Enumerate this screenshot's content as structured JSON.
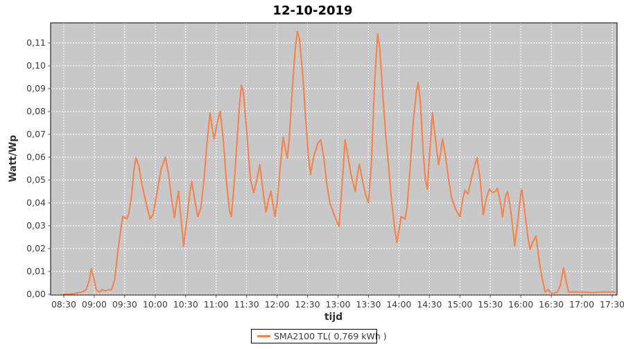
{
  "page": {
    "background": "#FFFFFF"
  },
  "chart_data": {
    "type": "line",
    "title": "12-10-2019",
    "xlabel": "tijd",
    "ylabel": "Watt/Wp",
    "x_tick_labels": [
      "08:30",
      "09:00",
      "09:30",
      "10:00",
      "10:30",
      "11:00",
      "11:30",
      "12:00",
      "12:30",
      "13:00",
      "13:30",
      "14:00",
      "14:30",
      "15:00",
      "15:30",
      "16:00",
      "16:30",
      "17:00",
      "17:30"
    ],
    "y_tick_labels": [
      "0,00",
      "0,01",
      "0,02",
      "0,03",
      "0,04",
      "0,05",
      "0,06",
      "0,07",
      "0,08",
      "0,09",
      "0,10",
      "0,11"
    ],
    "y_tick_values": [
      0.0,
      0.01,
      0.02,
      0.03,
      0.04,
      0.05,
      0.06,
      0.07,
      0.08,
      0.09,
      0.1,
      0.11
    ],
    "ylim": [
      0,
      0.118
    ],
    "x_range": [
      "08:30",
      "17:30"
    ],
    "grid": true,
    "grid_style": "white-dashed",
    "legend_position": "bottom",
    "plot_background": "#C8C8C8",
    "grid_color": "#FFFFFF",
    "border_color": "#000000",
    "tick_color": "#666666",
    "series": [
      {
        "name": "SMA2100 TL( 0,769 kWh )",
        "color": "#F4854E",
        "points": [
          [
            "08:30",
            0.0
          ],
          [
            "08:36",
            0.0
          ],
          [
            "08:42",
            0.0005
          ],
          [
            "08:48",
            0.001
          ],
          [
            "08:52",
            0.002
          ],
          [
            "08:55",
            0.006
          ],
          [
            "08:57",
            0.0112
          ],
          [
            "08:59",
            0.008
          ],
          [
            "09:02",
            0.002
          ],
          [
            "09:05",
            0.001
          ],
          [
            "09:08",
            0.002
          ],
          [
            "09:11",
            0.0015
          ],
          [
            "09:14",
            0.002
          ],
          [
            "09:17",
            0.002
          ],
          [
            "09:20",
            0.006
          ],
          [
            "09:23",
            0.018
          ],
          [
            "09:26",
            0.028
          ],
          [
            "09:28",
            0.034
          ],
          [
            "09:30",
            0.0335
          ],
          [
            "09:32",
            0.033
          ],
          [
            "09:34",
            0.035
          ],
          [
            "09:37",
            0.044
          ],
          [
            "09:39",
            0.054
          ],
          [
            "09:41",
            0.0597
          ],
          [
            "09:44",
            0.056
          ],
          [
            "09:47",
            0.048
          ],
          [
            "09:51",
            0.04
          ],
          [
            "09:55",
            0.033
          ],
          [
            "09:58",
            0.035
          ],
          [
            "10:02",
            0.045
          ],
          [
            "10:06",
            0.055
          ],
          [
            "10:10",
            0.06
          ],
          [
            "10:13",
            0.053
          ],
          [
            "10:16",
            0.042
          ],
          [
            "10:19",
            0.0336
          ],
          [
            "10:21",
            0.04
          ],
          [
            "10:23",
            0.0452
          ],
          [
            "10:25",
            0.035
          ],
          [
            "10:28",
            0.021
          ],
          [
            "10:31",
            0.032
          ],
          [
            "10:34",
            0.044
          ],
          [
            "10:36",
            0.0494
          ],
          [
            "10:39",
            0.041
          ],
          [
            "10:42",
            0.034
          ],
          [
            "10:45",
            0.038
          ],
          [
            "10:48",
            0.05
          ],
          [
            "10:51",
            0.066
          ],
          [
            "10:54",
            0.0794
          ],
          [
            "10:56",
            0.073
          ],
          [
            "10:58",
            0.068
          ],
          [
            "11:01",
            0.075
          ],
          [
            "11:04",
            0.08
          ],
          [
            "11:07",
            0.068
          ],
          [
            "11:10",
            0.05
          ],
          [
            "11:13",
            0.037
          ],
          [
            "11:15",
            0.034
          ],
          [
            "11:18",
            0.05
          ],
          [
            "11:21",
            0.07
          ],
          [
            "11:23",
            0.083
          ],
          [
            "11:25",
            0.0915
          ],
          [
            "11:27",
            0.088
          ],
          [
            "11:30",
            0.072
          ],
          [
            "11:32",
            0.06
          ],
          [
            "11:34",
            0.05
          ],
          [
            "11:37",
            0.0445
          ],
          [
            "11:40",
            0.05
          ],
          [
            "11:43",
            0.0567
          ],
          [
            "11:46",
            0.046
          ],
          [
            "11:49",
            0.036
          ],
          [
            "11:52",
            0.042
          ],
          [
            "11:54",
            0.0452
          ],
          [
            "11:56",
            0.039
          ],
          [
            "11:58",
            0.034
          ],
          [
            "12:00",
            0.04
          ],
          [
            "12:03",
            0.055
          ],
          [
            "12:06",
            0.0688
          ],
          [
            "12:08",
            0.064
          ],
          [
            "12:10",
            0.0597
          ],
          [
            "12:12",
            0.068
          ],
          [
            "12:15",
            0.09
          ],
          [
            "12:18",
            0.108
          ],
          [
            "12:20",
            0.115
          ],
          [
            "12:22",
            0.112
          ],
          [
            "12:25",
            0.098
          ],
          [
            "12:28",
            0.078
          ],
          [
            "12:31",
            0.06
          ],
          [
            "12:33",
            0.0524
          ],
          [
            "12:36",
            0.06
          ],
          [
            "12:40",
            0.066
          ],
          [
            "12:43",
            0.0676
          ],
          [
            "12:46",
            0.06
          ],
          [
            "12:49",
            0.048
          ],
          [
            "12:52",
            0.04
          ],
          [
            "12:56",
            0.035
          ],
          [
            "13:01",
            0.0297
          ],
          [
            "13:04",
            0.048
          ],
          [
            "13:07",
            0.0676
          ],
          [
            "13:10",
            0.06
          ],
          [
            "13:13",
            0.052
          ],
          [
            "13:17",
            0.045
          ],
          [
            "13:19",
            0.052
          ],
          [
            "13:21",
            0.057
          ],
          [
            "13:24",
            0.05
          ],
          [
            "13:27",
            0.044
          ],
          [
            "13:30",
            0.04
          ],
          [
            "13:33",
            0.058
          ],
          [
            "13:36",
            0.092
          ],
          [
            "13:39",
            0.114
          ],
          [
            "13:41",
            0.108
          ],
          [
            "13:44",
            0.088
          ],
          [
            "13:47",
            0.07
          ],
          [
            "13:50",
            0.055
          ],
          [
            "13:53",
            0.04
          ],
          [
            "13:56",
            0.028
          ],
          [
            "13:58",
            0.0227
          ],
          [
            "14:00",
            0.028
          ],
          [
            "14:02",
            0.034
          ],
          [
            "14:04",
            0.0335
          ],
          [
            "14:06",
            0.033
          ],
          [
            "14:08",
            0.038
          ],
          [
            "14:11",
            0.055
          ],
          [
            "14:14",
            0.075
          ],
          [
            "14:17",
            0.088
          ],
          [
            "14:19",
            0.0927
          ],
          [
            "14:21",
            0.085
          ],
          [
            "14:24",
            0.062
          ],
          [
            "14:26",
            0.05
          ],
          [
            "14:28",
            0.046
          ],
          [
            "14:30",
            0.06
          ],
          [
            "14:33",
            0.0794
          ],
          [
            "14:36",
            0.068
          ],
          [
            "14:39",
            0.0567
          ],
          [
            "14:41",
            0.062
          ],
          [
            "14:43",
            0.068
          ],
          [
            "14:46",
            0.06
          ],
          [
            "14:49",
            0.05
          ],
          [
            "14:52",
            0.042
          ],
          [
            "14:56",
            0.037
          ],
          [
            "15:00",
            0.034
          ],
          [
            "15:03",
            0.042
          ],
          [
            "15:05",
            0.0455
          ],
          [
            "15:08",
            0.044
          ],
          [
            "15:12",
            0.052
          ],
          [
            "15:15",
            0.057
          ],
          [
            "15:17",
            0.0597
          ],
          [
            "15:20",
            0.05
          ],
          [
            "15:23",
            0.0348
          ],
          [
            "15:26",
            0.042
          ],
          [
            "15:29",
            0.046
          ],
          [
            "15:32",
            0.0445
          ],
          [
            "15:35",
            0.045
          ],
          [
            "15:37",
            0.0464
          ],
          [
            "15:40",
            0.04
          ],
          [
            "15:42",
            0.0339
          ],
          [
            "15:45",
            0.043
          ],
          [
            "15:47",
            0.045
          ],
          [
            "15:50",
            0.037
          ],
          [
            "15:54",
            0.0212
          ],
          [
            "15:57",
            0.032
          ],
          [
            "16:00",
            0.044
          ],
          [
            "16:01",
            0.046
          ],
          [
            "16:04",
            0.036
          ],
          [
            "16:07",
            0.025
          ],
          [
            "16:09",
            0.0197
          ],
          [
            "16:12",
            0.023
          ],
          [
            "16:15",
            0.0255
          ],
          [
            "16:18",
            0.015
          ],
          [
            "16:21",
            0.007
          ],
          [
            "16:24",
            0.001
          ],
          [
            "16:27",
            0.002
          ],
          [
            "16:30",
            0.0005
          ],
          [
            "16:33",
            0.0005
          ],
          [
            "16:36",
            0.001
          ],
          [
            "16:39",
            0.004
          ],
          [
            "16:42",
            0.0115
          ],
          [
            "16:45",
            0.005
          ],
          [
            "16:47",
            0.001
          ],
          [
            "16:52",
            0.001
          ],
          [
            "17:00",
            0.001
          ],
          [
            "17:10",
            0.0008
          ],
          [
            "17:20",
            0.001
          ],
          [
            "17:30",
            0.001
          ],
          [
            "17:33",
            0.001
          ]
        ]
      }
    ]
  }
}
